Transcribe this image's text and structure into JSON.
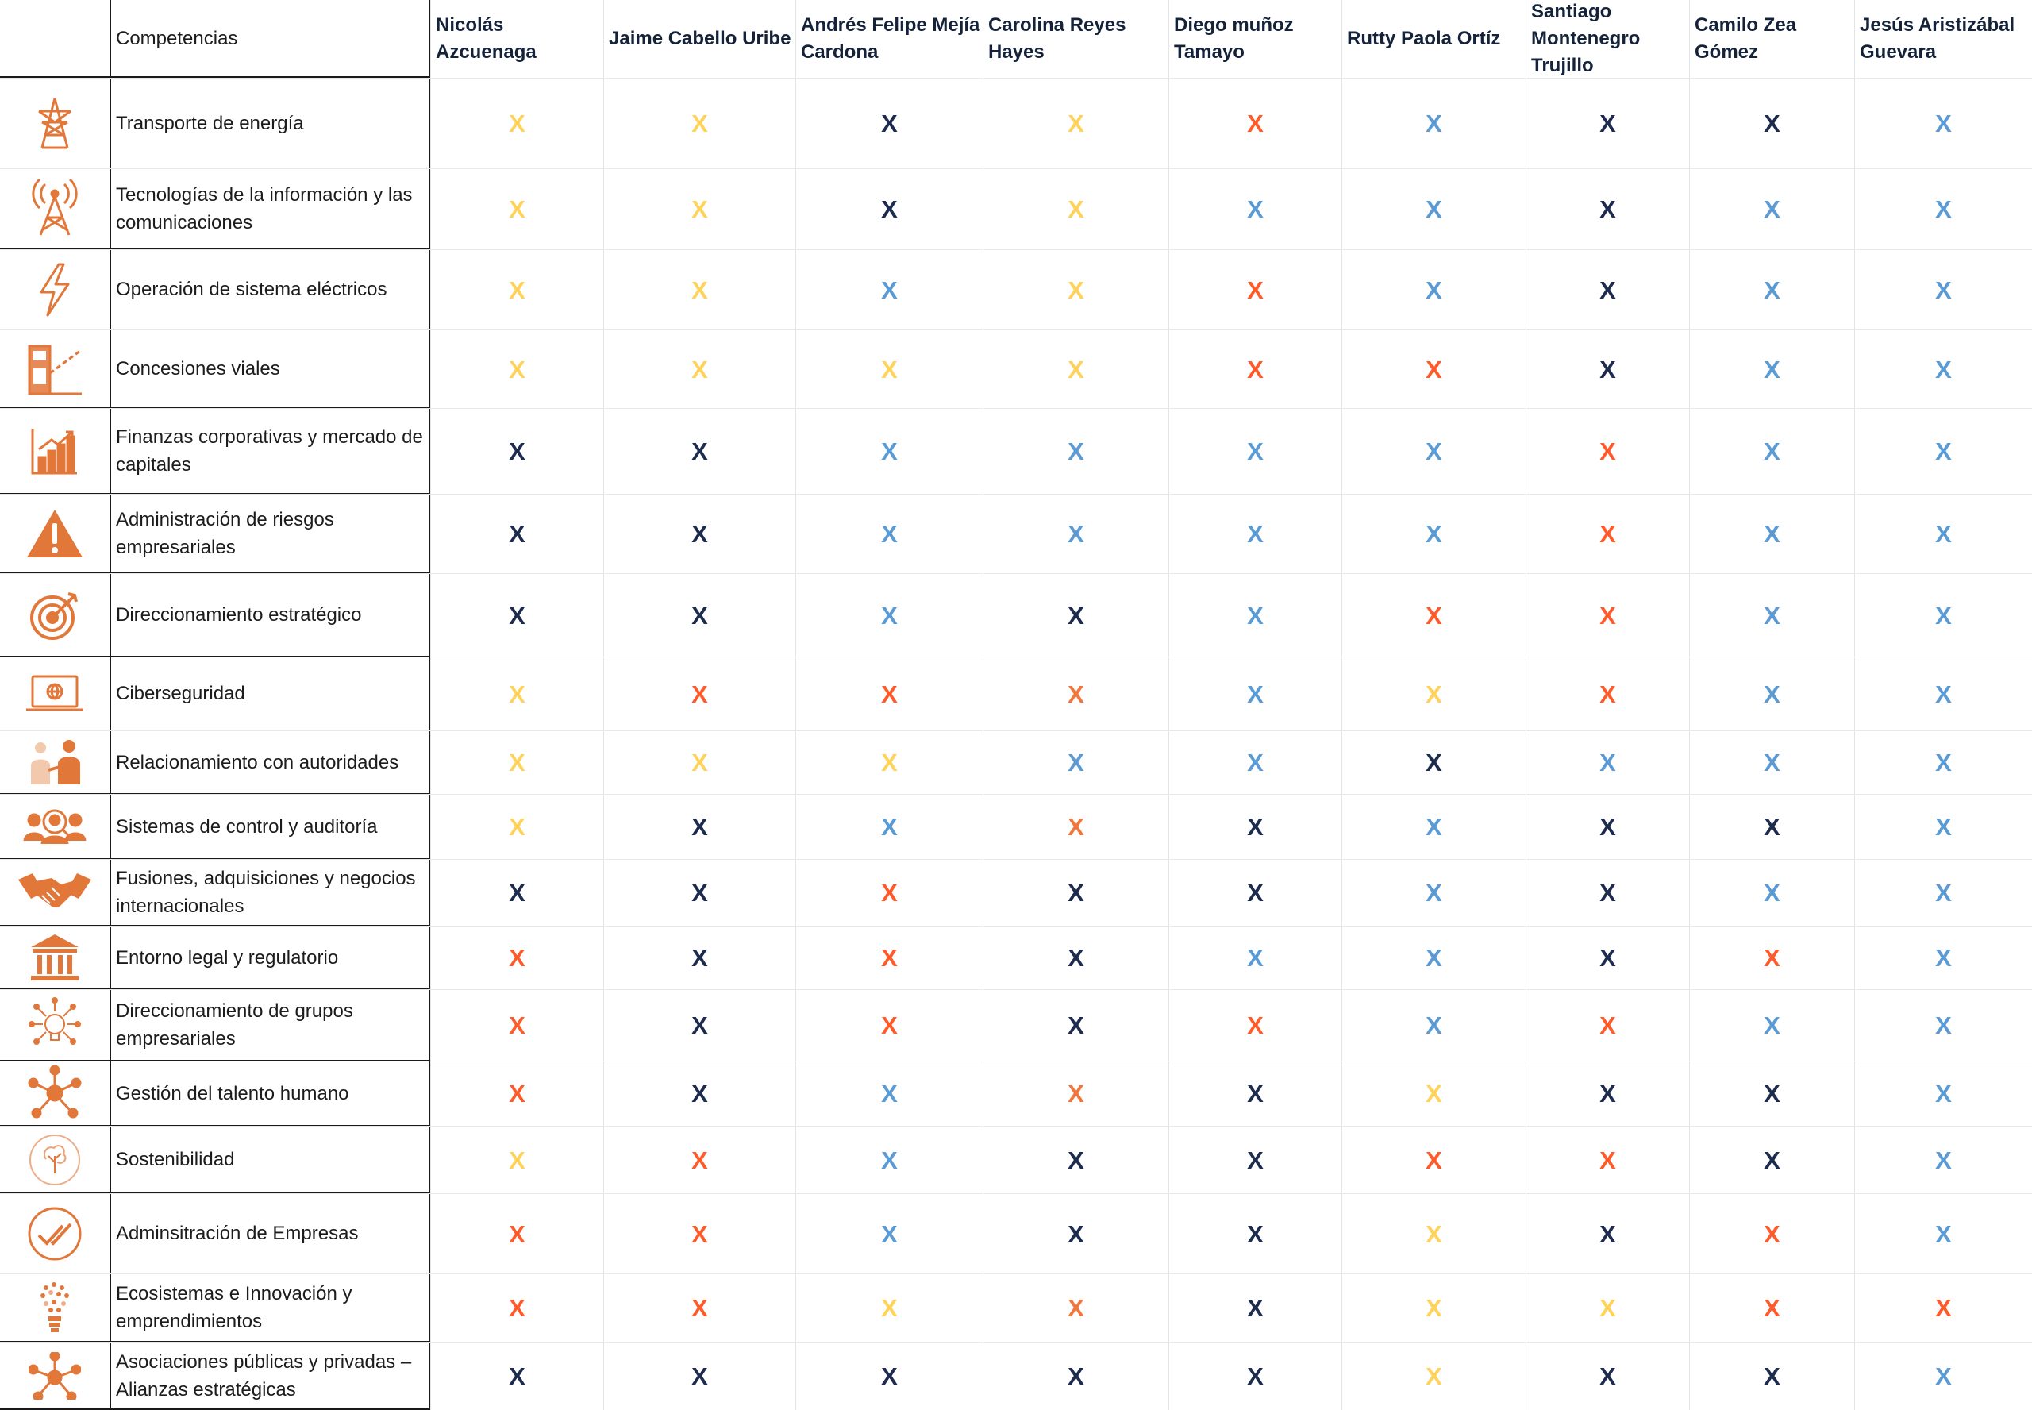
{
  "colors": {
    "navy": "#1c2b4e",
    "light_blue": "#5b9bd5",
    "yellow": "#ffd25a",
    "orange": "#f4753a",
    "red": "#ff5a2a",
    "icon_orange": "#e2773a"
  },
  "legend_note": "Marks are 'X' glyphs; their color encodes the level (navy, light_blue, yellow, orange, red).",
  "table": {
    "header_label": "Competencias",
    "columns": [
      "Nicolás Azcuenaga",
      "Jaime Cabello Uribe",
      "Andrés Felipe Mejía Cardona",
      "Carolina Reyes Hayes",
      "Diego muñoz Tamayo",
      "Rutty Paola Ortíz",
      "Santiago Montenegro Trujillo",
      "Camilo Zea Gómez",
      "Jesús Aristizábal Guevara"
    ],
    "rows": [
      {
        "icon": "power-tower-icon",
        "label": "Transporte de energía",
        "marks": [
          "yellow",
          "yellow",
          "navy",
          "yellow",
          "red",
          "light_blue",
          "navy",
          "navy",
          "light_blue"
        ]
      },
      {
        "icon": "antenna-tower-icon",
        "label": "Tecnologías de la información y las comunicaciones",
        "marks": [
          "yellow",
          "yellow",
          "navy",
          "yellow",
          "light_blue",
          "light_blue",
          "navy",
          "light_blue",
          "light_blue"
        ]
      },
      {
        "icon": "lightning-icon",
        "label": "Operación de sistema eléctricos",
        "marks": [
          "yellow",
          "yellow",
          "light_blue",
          "yellow",
          "red",
          "light_blue",
          "navy",
          "light_blue",
          "light_blue"
        ]
      },
      {
        "icon": "toll-booth-icon",
        "label": "Concesiones viales",
        "marks": [
          "yellow",
          "yellow",
          "yellow",
          "yellow",
          "red",
          "red",
          "navy",
          "light_blue",
          "light_blue"
        ]
      },
      {
        "icon": "growth-chart-icon",
        "label": "Finanzas corporativas y mercado de capitales",
        "marks": [
          "navy",
          "navy",
          "light_blue",
          "light_blue",
          "light_blue",
          "light_blue",
          "red",
          "light_blue",
          "light_blue"
        ]
      },
      {
        "icon": "warning-icon",
        "label": "Administración de riesgos empresariales",
        "marks": [
          "navy",
          "navy",
          "light_blue",
          "light_blue",
          "light_blue",
          "light_blue",
          "red",
          "light_blue",
          "light_blue"
        ]
      },
      {
        "icon": "target-icon",
        "label": "Direccionamiento estratégico",
        "marks": [
          "navy",
          "navy",
          "light_blue",
          "navy",
          "light_blue",
          "red",
          "red",
          "light_blue",
          "light_blue"
        ]
      },
      {
        "icon": "laptop-globe-icon",
        "label": "Ciberseguridad",
        "marks": [
          "yellow",
          "red",
          "red",
          "orange",
          "light_blue",
          "yellow",
          "red",
          "light_blue",
          "light_blue"
        ]
      },
      {
        "icon": "people-meeting-icon",
        "label": "Relacionamiento con autoridades",
        "marks": [
          "yellow",
          "yellow",
          "yellow",
          "light_blue",
          "light_blue",
          "navy",
          "light_blue",
          "light_blue",
          "light_blue"
        ]
      },
      {
        "icon": "audit-team-icon",
        "label": "Sistemas de control y auditoría",
        "marks": [
          "yellow",
          "navy",
          "light_blue",
          "orange",
          "navy",
          "light_blue",
          "navy",
          "navy",
          "light_blue"
        ]
      },
      {
        "icon": "handshake-icon",
        "label": "Fusiones, adquisiciones y negocios internacionales",
        "marks": [
          "navy",
          "navy",
          "red",
          "navy",
          "navy",
          "light_blue",
          "navy",
          "light_blue",
          "light_blue"
        ]
      },
      {
        "icon": "institution-icon",
        "label": "Entorno legal y regulatorio",
        "marks": [
          "red",
          "navy",
          "red",
          "navy",
          "light_blue",
          "light_blue",
          "navy",
          "red",
          "light_blue"
        ]
      },
      {
        "icon": "idea-network-icon",
        "label": "Direccionamiento de grupos empresariales",
        "marks": [
          "red",
          "navy",
          "red",
          "navy",
          "red",
          "light_blue",
          "red",
          "light_blue",
          "light_blue"
        ]
      },
      {
        "icon": "people-network-icon",
        "label": "Gestión del talento humano",
        "marks": [
          "red",
          "navy",
          "light_blue",
          "orange",
          "navy",
          "yellow",
          "navy",
          "navy",
          "light_blue"
        ]
      },
      {
        "icon": "tree-circle-icon",
        "label": "Sostenibilidad",
        "marks": [
          "yellow",
          "red",
          "light_blue",
          "navy",
          "navy",
          "red",
          "red",
          "navy",
          "light_blue"
        ]
      },
      {
        "icon": "double-check-icon",
        "label": "Adminsitración de Empresas",
        "marks": [
          "red",
          "red",
          "light_blue",
          "navy",
          "navy",
          "yellow",
          "navy",
          "red",
          "light_blue"
        ]
      },
      {
        "icon": "lightbulb-dots-icon",
        "label": "Ecosistemas e Innovación y emprendimientos",
        "marks": [
          "red",
          "red",
          "yellow",
          "orange",
          "navy",
          "yellow",
          "yellow",
          "red",
          "red"
        ]
      },
      {
        "icon": "hub-network-icon",
        "label": "Asociaciones públicas y privadas – Alianzas estratégicas",
        "marks": [
          "navy",
          "navy",
          "navy",
          "navy",
          "navy",
          "yellow",
          "navy",
          "navy",
          "light_blue"
        ]
      }
    ],
    "mark_glyph": "X"
  }
}
